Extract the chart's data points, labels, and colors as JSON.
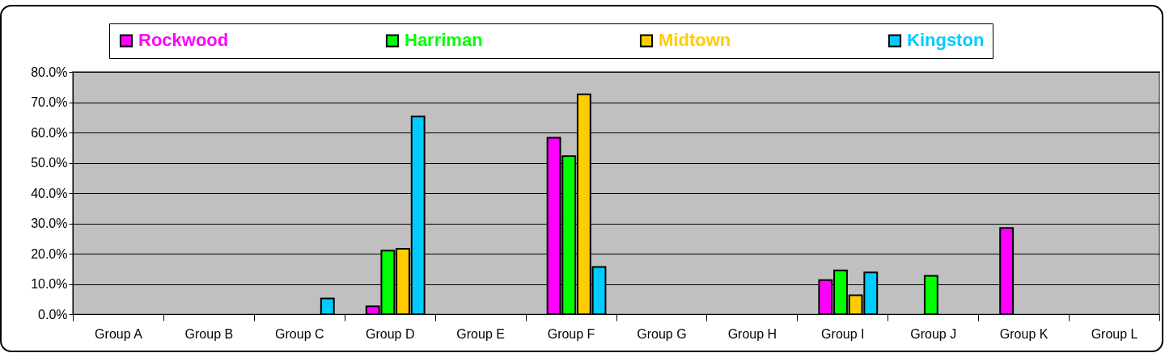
{
  "chart_data": {
    "type": "bar",
    "categories": [
      "Group A",
      "Group B",
      "Group C",
      "Group D",
      "Group E",
      "Group F",
      "Group G",
      "Group H",
      "Group I",
      "Group J",
      "Group K",
      "Group L"
    ],
    "series": [
      {
        "name": "Rockwood",
        "color": "#ff00ff",
        "values": [
          null,
          null,
          null,
          2.6,
          null,
          58.3,
          null,
          null,
          11.3,
          null,
          28.5,
          null
        ]
      },
      {
        "name": "Harriman",
        "color": "#00ff00",
        "values": [
          null,
          null,
          null,
          21.0,
          null,
          52.2,
          null,
          null,
          14.5,
          12.7,
          null,
          null
        ]
      },
      {
        "name": "Midtown",
        "color": "#ffcc00",
        "values": [
          null,
          null,
          null,
          21.6,
          null,
          72.6,
          null,
          null,
          6.3,
          null,
          null,
          null
        ]
      },
      {
        "name": "Kingston",
        "color": "#00ccff",
        "values": [
          null,
          null,
          5.2,
          65.3,
          null,
          15.6,
          null,
          null,
          13.8,
          null,
          null,
          null
        ]
      }
    ],
    "ylim": [
      0,
      80
    ],
    "yticks": [
      {
        "value": 0,
        "label": "0.0%"
      },
      {
        "value": 10,
        "label": "10.0%"
      },
      {
        "value": 20,
        "label": "20.0%"
      },
      {
        "value": 30,
        "label": "30.0%"
      },
      {
        "value": 40,
        "label": "40.0%"
      },
      {
        "value": 50,
        "label": "50.0%"
      },
      {
        "value": 60,
        "label": "60.0%"
      },
      {
        "value": 70,
        "label": "70.0%"
      },
      {
        "value": 80,
        "label": "80.0%"
      }
    ],
    "grid": "y",
    "legend": "top"
  }
}
